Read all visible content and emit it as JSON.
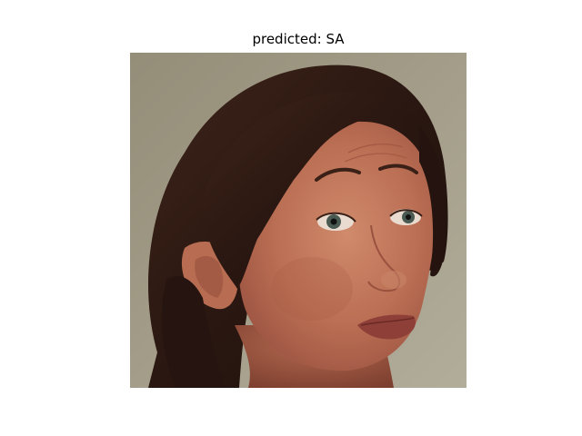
{
  "figure": {
    "title": "predicted: SA"
  },
  "image": {
    "subject": "face-photo",
    "colors": {
      "background": "#a09a86",
      "hair": "#2e1a14",
      "skin": "#c0745a",
      "lips": "#8e3f38"
    }
  }
}
